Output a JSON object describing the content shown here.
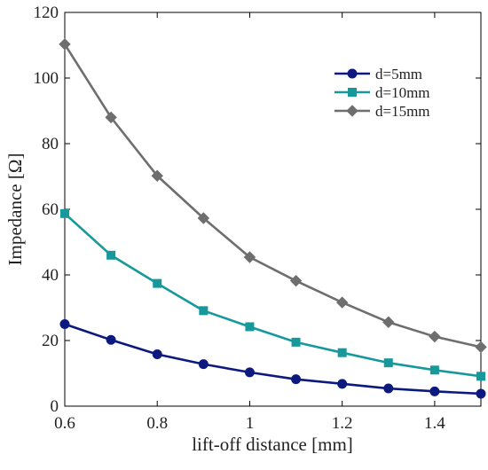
{
  "chart_data": {
    "type": "line",
    "title": "",
    "xlabel": "lift-off distance [mm]",
    "ylabel": "Impedance [Ω]",
    "xlim": [
      0.6,
      1.5
    ],
    "ylim": [
      0,
      120
    ],
    "x": [
      0.6,
      0.7,
      0.8,
      0.9,
      1.0,
      1.1,
      1.2,
      1.3,
      1.4,
      1.5
    ],
    "xticks": [
      0.6,
      0.8,
      1.0,
      1.2,
      1.4
    ],
    "xtick_labels": [
      "0.6",
      "0.8",
      "1",
      "1.2",
      "1.4"
    ],
    "yticks": [
      0,
      20,
      40,
      60,
      80,
      100,
      120
    ],
    "ytick_labels": [
      "0",
      "20",
      "40",
      "60",
      "80",
      "100",
      "120"
    ],
    "grid": false,
    "legend_position": "top-right",
    "series": [
      {
        "name": "d=5mm",
        "marker": "circle",
        "color": "#0c1a80",
        "values": [
          25.0,
          20.2,
          15.8,
          12.8,
          10.3,
          8.2,
          6.8,
          5.4,
          4.5,
          3.8
        ]
      },
      {
        "name": "d=10mm",
        "marker": "square",
        "color": "#17999c",
        "values": [
          58.7,
          46.0,
          37.4,
          29.1,
          24.2,
          19.5,
          16.3,
          13.2,
          11.0,
          9.1
        ]
      },
      {
        "name": "d=15mm",
        "marker": "diamond",
        "color": "#6e6e6e",
        "values": [
          110.3,
          88.0,
          70.2,
          57.3,
          45.4,
          38.2,
          31.6,
          25.6,
          21.2,
          18.0
        ]
      }
    ]
  }
}
